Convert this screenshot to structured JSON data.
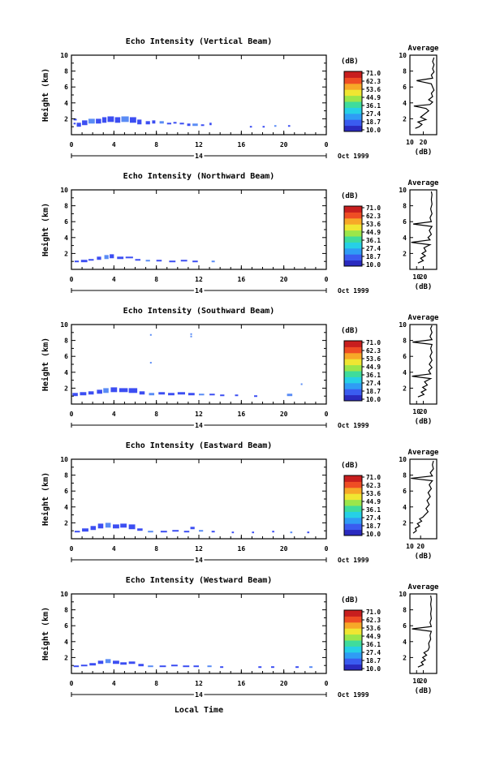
{
  "figure": {
    "xlabel": "Local Time",
    "date_label": "Oct 1999",
    "day_label": "14",
    "cb_unit": "(dB)",
    "cb_ticks": [
      "71.0",
      "62.3",
      "53.6",
      "44.9",
      "36.1",
      "27.4",
      "18.7",
      "10.0"
    ],
    "cb_colors": [
      "#2a2abf",
      "#3a5cf0",
      "#2f9cf5",
      "#26d0e6",
      "#3fdc9c",
      "#9be64a",
      "#f0e632",
      "#f7a828",
      "#ef4d24",
      "#c81e1e"
    ],
    "avg_title": "Average",
    "avg_xlabel": "(dB)",
    "echo_color": "#3c4ef2",
    "echo_color_light": "#5a8cf5"
  },
  "chart_data": [
    {
      "type": "heatmap",
      "title": "Echo Intensity (Vertical Beam)",
      "ylabel": "Height (km)",
      "xlim": [
        0,
        24
      ],
      "ylim": [
        0,
        10
      ],
      "xticks": [
        "0",
        "4",
        "8",
        "12",
        "16",
        "20",
        "0"
      ],
      "yticks": [
        "2",
        "4",
        "6",
        "8",
        "10"
      ],
      "echo_cells": [
        [
          0.2,
          1.5,
          0.2,
          1.3
        ],
        [
          0.2,
          2.0,
          0.3,
          1.8
        ],
        [
          0.5,
          1.5,
          0.4,
          1.0
        ],
        [
          1.0,
          1.8,
          0.5,
          1.2
        ],
        [
          1.6,
          2.0,
          0.6,
          1.4
        ],
        [
          2.3,
          2.0,
          0.5,
          1.4
        ],
        [
          2.9,
          2.2,
          0.4,
          1.5
        ],
        [
          3.4,
          2.3,
          0.6,
          1.6
        ],
        [
          4.1,
          2.2,
          0.5,
          1.5
        ],
        [
          4.7,
          2.3,
          0.7,
          1.6
        ],
        [
          5.5,
          2.2,
          0.6,
          1.5
        ],
        [
          6.2,
          1.9,
          0.4,
          1.3
        ],
        [
          7.0,
          1.7,
          0.4,
          1.3
        ],
        [
          7.6,
          1.8,
          0.3,
          1.4
        ],
        [
          8.3,
          1.7,
          0.4,
          1.4
        ],
        [
          9.0,
          1.5,
          0.4,
          1.3
        ],
        [
          9.6,
          1.6,
          0.3,
          1.4
        ],
        [
          10.2,
          1.5,
          0.4,
          1.3
        ],
        [
          10.9,
          1.4,
          0.3,
          1.1
        ],
        [
          11.4,
          1.4,
          0.5,
          1.1
        ],
        [
          12.2,
          1.3,
          0.3,
          1.1
        ],
        [
          13.0,
          1.5,
          0.2,
          1.2
        ],
        [
          16.8,
          1.1,
          0.2,
          1.0
        ],
        [
          18.0,
          1.1,
          0.2,
          1.0
        ],
        [
          19.1,
          1.2,
          0.2,
          1.0
        ],
        [
          20.4,
          1.2,
          0.2,
          1.0
        ]
      ],
      "avg": {
        "xlim": [
          10,
          30
        ],
        "xticks": [
          "10",
          "20"
        ],
        "yticks": [
          "2",
          "4",
          "6",
          "8",
          "10"
        ],
        "profile": [
          [
            0.8,
            14
          ],
          [
            1.0,
            17
          ],
          [
            1.3,
            19
          ],
          [
            1.6,
            16
          ],
          [
            1.9,
            22
          ],
          [
            2.2,
            18
          ],
          [
            2.6,
            21
          ],
          [
            3.0,
            24
          ],
          [
            3.3,
            22
          ],
          [
            3.6,
            13
          ],
          [
            3.8,
            25
          ],
          [
            4.1,
            27
          ],
          [
            4.4,
            24
          ],
          [
            4.8,
            27
          ],
          [
            5.2,
            26
          ],
          [
            5.6,
            28
          ],
          [
            6.0,
            27
          ],
          [
            6.4,
            26
          ],
          [
            6.8,
            15
          ],
          [
            7.1,
            27
          ],
          [
            7.5,
            26
          ],
          [
            7.9,
            28
          ],
          [
            8.3,
            27
          ],
          [
            8.8,
            28
          ],
          [
            9.2,
            27
          ],
          [
            9.7,
            28
          ]
        ]
      }
    },
    {
      "type": "heatmap",
      "title": "Echo Intensity (Northward Beam)",
      "ylabel": "Height (km)",
      "xlim": [
        0,
        24
      ],
      "ylim": [
        0,
        10
      ],
      "xticks": [
        "0",
        "4",
        "8",
        "12",
        "16",
        "20",
        "0"
      ],
      "yticks": [
        "2",
        "4",
        "6",
        "8",
        "10"
      ],
      "echo_cells": [
        [
          0.3,
          1.1,
          0.4,
          0.9
        ],
        [
          0.9,
          1.2,
          0.6,
          0.9
        ],
        [
          1.6,
          1.3,
          0.5,
          1.1
        ],
        [
          2.4,
          1.6,
          0.4,
          1.2
        ],
        [
          3.1,
          1.8,
          0.4,
          1.3
        ],
        [
          3.6,
          1.9,
          0.4,
          1.4
        ],
        [
          4.3,
          1.6,
          0.6,
          1.3
        ],
        [
          5.1,
          1.6,
          0.7,
          1.4
        ],
        [
          6.0,
          1.3,
          0.5,
          1.1
        ],
        [
          7.0,
          1.2,
          0.4,
          1.0
        ],
        [
          8.0,
          1.2,
          0.5,
          1.0
        ],
        [
          9.2,
          1.1,
          0.6,
          0.9
        ],
        [
          10.3,
          1.2,
          0.6,
          1.0
        ],
        [
          11.4,
          1.1,
          0.5,
          0.9
        ],
        [
          13.2,
          1.1,
          0.3,
          0.9
        ]
      ],
      "avg": {
        "xlim": [
          0,
          40
        ],
        "xticks": [
          "10",
          "20"
        ],
        "yticks": [
          "2",
          "4",
          "6",
          "8",
          "10"
        ],
        "profile": [
          [
            0.8,
            12
          ],
          [
            1.1,
            20
          ],
          [
            1.4,
            16
          ],
          [
            1.7,
            23
          ],
          [
            2.0,
            18
          ],
          [
            2.3,
            24
          ],
          [
            2.7,
            21
          ],
          [
            3.1,
            30
          ],
          [
            3.4,
            2
          ],
          [
            3.7,
            30
          ],
          [
            4.0,
            27
          ],
          [
            4.4,
            32
          ],
          [
            4.9,
            29
          ],
          [
            5.4,
            33
          ],
          [
            5.7,
            5
          ],
          [
            6.0,
            32
          ],
          [
            6.5,
            30
          ],
          [
            7.0,
            33
          ],
          [
            7.6,
            31
          ],
          [
            8.2,
            33
          ],
          [
            8.8,
            32
          ],
          [
            9.4,
            33
          ],
          [
            9.8,
            32
          ]
        ]
      }
    },
    {
      "type": "heatmap",
      "title": "Echo Intensity (Southward Beam)",
      "ylabel": "Height (km)",
      "xlim": [
        0,
        24
      ],
      "ylim": [
        0,
        10
      ],
      "xticks": [
        "0",
        "4",
        "8",
        "12",
        "16",
        "20",
        "0"
      ],
      "yticks": [
        "2",
        "4",
        "6",
        "8",
        "10"
      ],
      "echo_cells": [
        [
          0.1,
          1.4,
          0.5,
          1.0
        ],
        [
          0.8,
          1.5,
          0.6,
          1.1
        ],
        [
          1.6,
          1.6,
          0.5,
          1.2
        ],
        [
          2.4,
          1.8,
          0.5,
          1.3
        ],
        [
          3.0,
          2.0,
          0.5,
          1.4
        ],
        [
          3.7,
          2.1,
          0.6,
          1.5
        ],
        [
          4.5,
          2.0,
          0.8,
          1.5
        ],
        [
          5.4,
          2.0,
          0.8,
          1.4
        ],
        [
          6.4,
          1.6,
          0.5,
          1.2
        ],
        [
          7.3,
          1.4,
          0.5,
          1.1
        ],
        [
          8.2,
          1.5,
          0.6,
          1.2
        ],
        [
          9.1,
          1.4,
          0.6,
          1.1
        ],
        [
          10.0,
          1.5,
          0.7,
          1.2
        ],
        [
          11.0,
          1.4,
          0.6,
          1.1
        ],
        [
          12.0,
          1.3,
          0.5,
          1.1
        ],
        [
          13.0,
          1.3,
          0.5,
          1.1
        ],
        [
          14.0,
          1.2,
          0.4,
          1.0
        ],
        [
          15.4,
          1.2,
          0.3,
          1.0
        ],
        [
          17.2,
          1.1,
          0.3,
          1.0
        ],
        [
          20.3,
          1.3,
          0.5,
          1.0
        ],
        [
          7.4,
          8.8,
          0.1,
          8.7
        ],
        [
          11.2,
          8.9,
          0.1,
          8.7
        ],
        [
          11.2,
          8.6,
          0.1,
          8.4
        ],
        [
          7.4,
          5.3,
          0.1,
          5.2
        ],
        [
          21.6,
          2.6,
          0.1,
          2.5
        ]
      ],
      "avg": {
        "xlim": [
          0,
          40
        ],
        "xticks": [
          "10",
          "20"
        ],
        "yticks": [
          "2",
          "4",
          "6",
          "8",
          "10"
        ],
        "profile": [
          [
            0.9,
            12
          ],
          [
            1.2,
            21
          ],
          [
            1.5,
            17
          ],
          [
            1.8,
            24
          ],
          [
            2.1,
            19
          ],
          [
            2.4,
            26
          ],
          [
            2.8,
            22
          ],
          [
            3.2,
            31
          ],
          [
            3.5,
            3
          ],
          [
            3.8,
            31
          ],
          [
            4.2,
            28
          ],
          [
            4.6,
            33
          ],
          [
            5.0,
            29
          ],
          [
            5.5,
            33
          ],
          [
            6.0,
            30
          ],
          [
            6.5,
            33
          ],
          [
            7.0,
            31
          ],
          [
            7.5,
            33
          ],
          [
            7.8,
            4
          ],
          [
            8.1,
            33
          ],
          [
            8.5,
            30
          ],
          [
            9.0,
            33
          ],
          [
            9.5,
            31
          ],
          [
            9.9,
            33
          ]
        ]
      }
    },
    {
      "type": "heatmap",
      "title": "Echo Intensity (Eastward Beam)",
      "ylabel": "Height (km)",
      "xlim": [
        0,
        24
      ],
      "ylim": [
        0,
        10
      ],
      "xticks": [
        "0",
        "4",
        "8",
        "12",
        "16",
        "20",
        "0"
      ],
      "yticks": [
        "2",
        "4",
        "6",
        "8",
        "10"
      ],
      "echo_cells": [
        [
          0.3,
          1.0,
          0.5,
          0.8
        ],
        [
          1.0,
          1.3,
          0.6,
          0.9
        ],
        [
          1.8,
          1.6,
          0.5,
          1.1
        ],
        [
          2.5,
          1.9,
          0.5,
          1.3
        ],
        [
          3.2,
          2.0,
          0.5,
          1.4
        ],
        [
          3.9,
          1.8,
          0.6,
          1.3
        ],
        [
          4.6,
          1.9,
          0.6,
          1.4
        ],
        [
          5.4,
          1.8,
          0.6,
          1.2
        ],
        [
          6.2,
          1.3,
          0.5,
          1.0
        ],
        [
          7.2,
          1.0,
          0.5,
          0.8
        ],
        [
          8.4,
          1.0,
          0.6,
          0.8
        ],
        [
          9.5,
          1.1,
          0.6,
          0.9
        ],
        [
          10.6,
          1.0,
          0.5,
          0.8
        ],
        [
          11.2,
          1.5,
          0.4,
          1.2
        ],
        [
          12.0,
          1.1,
          0.4,
          0.9
        ],
        [
          13.2,
          1.0,
          0.3,
          0.8
        ],
        [
          15.1,
          0.9,
          0.2,
          0.8
        ],
        [
          17.0,
          0.9,
          0.2,
          0.8
        ],
        [
          18.9,
          1.0,
          0.2,
          0.8
        ],
        [
          20.6,
          0.9,
          0.2,
          0.8
        ],
        [
          22.2,
          0.9,
          0.2,
          0.8
        ]
      ],
      "avg": {
        "xlim": [
          10,
          35
        ],
        "xticks": [
          "10",
          "20"
        ],
        "yticks": [
          "2",
          "4",
          "6",
          "8",
          "10"
        ],
        "profile": [
          [
            0.7,
            13
          ],
          [
            1.0,
            16
          ],
          [
            1.3,
            15
          ],
          [
            1.6,
            19
          ],
          [
            1.9,
            17
          ],
          [
            2.2,
            21
          ],
          [
            2.5,
            19
          ],
          [
            2.7,
            22
          ],
          [
            3.0,
            24
          ],
          [
            3.4,
            27
          ],
          [
            3.8,
            25
          ],
          [
            4.3,
            28
          ],
          [
            4.8,
            26
          ],
          [
            5.3,
            29
          ],
          [
            5.8,
            27
          ],
          [
            6.3,
            30
          ],
          [
            6.8,
            28
          ],
          [
            7.3,
            31
          ],
          [
            7.6,
            11
          ],
          [
            7.9,
            31
          ],
          [
            8.3,
            29
          ],
          [
            8.8,
            32
          ],
          [
            9.3,
            31
          ],
          [
            9.8,
            32
          ]
        ]
      }
    },
    {
      "type": "heatmap",
      "title": "Echo Intensity (Westward Beam)",
      "ylabel": "Height (km)",
      "xlim": [
        0,
        24
      ],
      "ylim": [
        0,
        10
      ],
      "xticks": [
        "0",
        "4",
        "8",
        "12",
        "16",
        "20",
        "0"
      ],
      "yticks": [
        "2",
        "4",
        "6",
        "8",
        "10"
      ],
      "echo_cells": [
        [
          0.2,
          1.0,
          0.5,
          0.8
        ],
        [
          0.9,
          1.1,
          0.6,
          0.9
        ],
        [
          1.7,
          1.3,
          0.6,
          1.0
        ],
        [
          2.5,
          1.6,
          0.5,
          1.2
        ],
        [
          3.2,
          1.8,
          0.5,
          1.3
        ],
        [
          3.9,
          1.6,
          0.6,
          1.2
        ],
        [
          4.6,
          1.4,
          0.6,
          1.1
        ],
        [
          5.4,
          1.5,
          0.6,
          1.2
        ],
        [
          6.3,
          1.2,
          0.5,
          0.9
        ],
        [
          7.2,
          1.0,
          0.5,
          0.8
        ],
        [
          8.3,
          1.0,
          0.6,
          0.8
        ],
        [
          9.4,
          1.1,
          0.6,
          0.9
        ],
        [
          10.5,
          1.0,
          0.6,
          0.8
        ],
        [
          11.5,
          1.0,
          0.5,
          0.8
        ],
        [
          12.8,
          1.0,
          0.4,
          0.8
        ],
        [
          14.0,
          0.9,
          0.3,
          0.8
        ],
        [
          17.6,
          0.9,
          0.3,
          0.8
        ],
        [
          18.8,
          0.9,
          0.3,
          0.8
        ],
        [
          21.1,
          0.9,
          0.3,
          0.8
        ],
        [
          22.4,
          0.9,
          0.3,
          0.8
        ]
      ],
      "avg": {
        "xlim": [
          0,
          40
        ],
        "xticks": [
          "10",
          "20"
        ],
        "yticks": [
          "2",
          "4",
          "6",
          "8",
          "10"
        ],
        "profile": [
          [
            0.8,
            12
          ],
          [
            1.1,
            20
          ],
          [
            1.4,
            17
          ],
          [
            1.7,
            23
          ],
          [
            2.0,
            19
          ],
          [
            2.3,
            25
          ],
          [
            2.6,
            21
          ],
          [
            2.9,
            27
          ],
          [
            3.3,
            29
          ],
          [
            3.8,
            28
          ],
          [
            4.3,
            31
          ],
          [
            4.8,
            30
          ],
          [
            5.3,
            32
          ],
          [
            5.6,
            3
          ],
          [
            5.9,
            32
          ],
          [
            6.4,
            30
          ],
          [
            6.9,
            32
          ],
          [
            7.5,
            31
          ],
          [
            8.1,
            32
          ],
          [
            8.7,
            31
          ],
          [
            9.3,
            32
          ],
          [
            9.8,
            31
          ]
        ]
      }
    }
  ]
}
